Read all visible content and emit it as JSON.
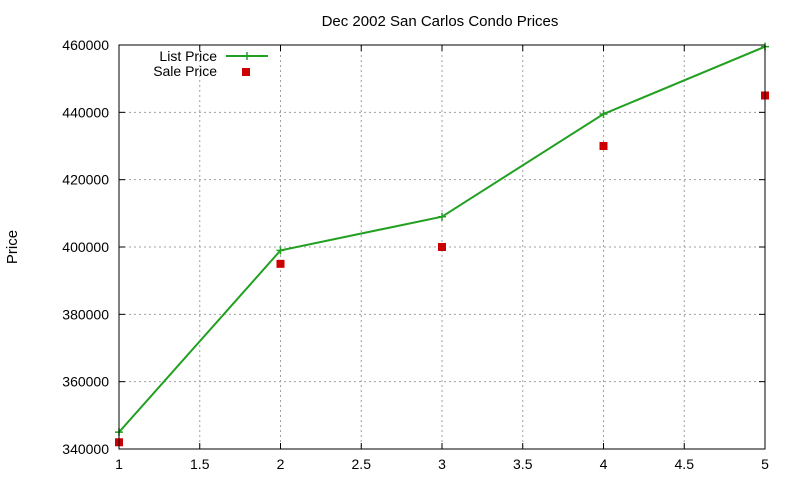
{
  "chart_data": {
    "type": "line",
    "title": "Dec 2002 San Carlos Condo Prices",
    "xlabel": "",
    "ylabel": "Price",
    "xlim": [
      1,
      5
    ],
    "ylim": [
      340000,
      460000
    ],
    "xticks": [
      1,
      1.5,
      2,
      2.5,
      3,
      3.5,
      4,
      4.5,
      5
    ],
    "xtick_labels": [
      "1",
      "1.5",
      "2",
      "2.5",
      "3",
      "3.5",
      "4",
      "4.5",
      "5"
    ],
    "yticks": [
      340000,
      360000,
      380000,
      400000,
      420000,
      440000,
      460000
    ],
    "ytick_labels": [
      "340000",
      "360000",
      "380000",
      "400000",
      "420000",
      "440000",
      "460000"
    ],
    "grid": true,
    "legend_position": "top-left",
    "series": [
      {
        "name": "List Price",
        "style": "line-with-plus-markers",
        "color": "#22a022",
        "x": [
          1,
          2,
          3,
          4,
          5
        ],
        "y": [
          345000,
          399000,
          409000,
          439500,
          459500
        ]
      },
      {
        "name": "Sale Price",
        "style": "square-markers",
        "color": "#cc0000",
        "x": [
          1,
          2,
          3,
          4,
          5
        ],
        "y": [
          342000,
          395000,
          400000,
          430000,
          445000
        ]
      }
    ]
  }
}
